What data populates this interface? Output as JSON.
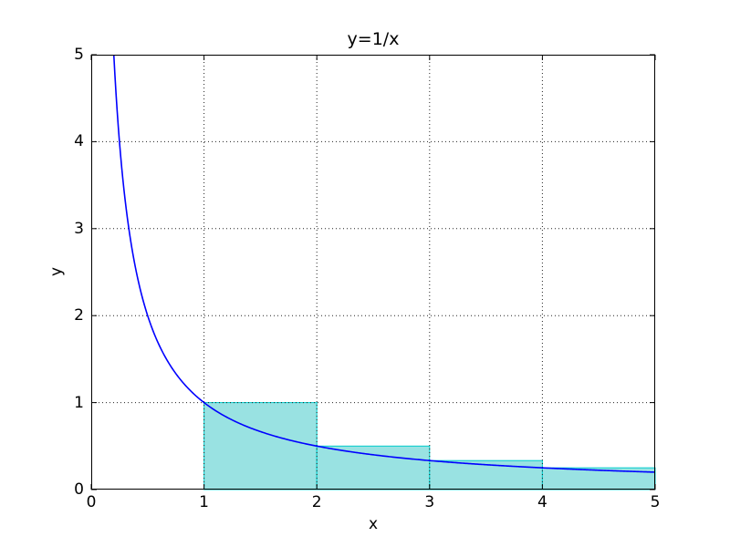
{
  "figure": {
    "title": "y=1/x",
    "xlabel": "x",
    "ylabel": "y",
    "background_color": "#ffffff"
  },
  "chart_data": {
    "type": "line",
    "title": "y=1/x",
    "xlabel": "x",
    "ylabel": "y",
    "xlim": [
      0,
      5
    ],
    "ylim": [
      0,
      5
    ],
    "xticks": [
      0,
      1,
      2,
      3,
      4,
      5
    ],
    "yticks": [
      0,
      1,
      2,
      3,
      4,
      5
    ],
    "xtick_labels": [
      "0",
      "1",
      "2",
      "3",
      "4",
      "5"
    ],
    "ytick_labels": [
      "0",
      "1",
      "2",
      "3",
      "4",
      "5"
    ],
    "grid": true,
    "grid_style": "dotted",
    "grid_color": "#222222",
    "legend": "none",
    "series": [
      {
        "name": "y=1/x curve",
        "type": "line",
        "color": "#0000ff",
        "expression": "1/x",
        "x_start": 0.2,
        "x_end": 5.0,
        "sample_points": [
          [
            0.2,
            5.0
          ],
          [
            0.25,
            4.0
          ],
          [
            0.3333,
            3.0
          ],
          [
            0.5,
            2.0
          ],
          [
            1.0,
            1.0
          ],
          [
            2.0,
            0.5
          ],
          [
            3.0,
            0.3333
          ],
          [
            4.0,
            0.25
          ],
          [
            5.0,
            0.2
          ]
        ]
      },
      {
        "name": "left Riemann rectangles under 1/x",
        "type": "bar",
        "fill": "#99e2e2",
        "edge": "#00cccc",
        "bars": [
          {
            "x0": 1,
            "x1": 2,
            "height": 1.0
          },
          {
            "x0": 2,
            "x1": 3,
            "height": 0.5
          },
          {
            "x0": 3,
            "x1": 4,
            "height": 0.3333
          },
          {
            "x0": 4,
            "x1": 5,
            "height": 0.25
          }
        ]
      }
    ]
  }
}
